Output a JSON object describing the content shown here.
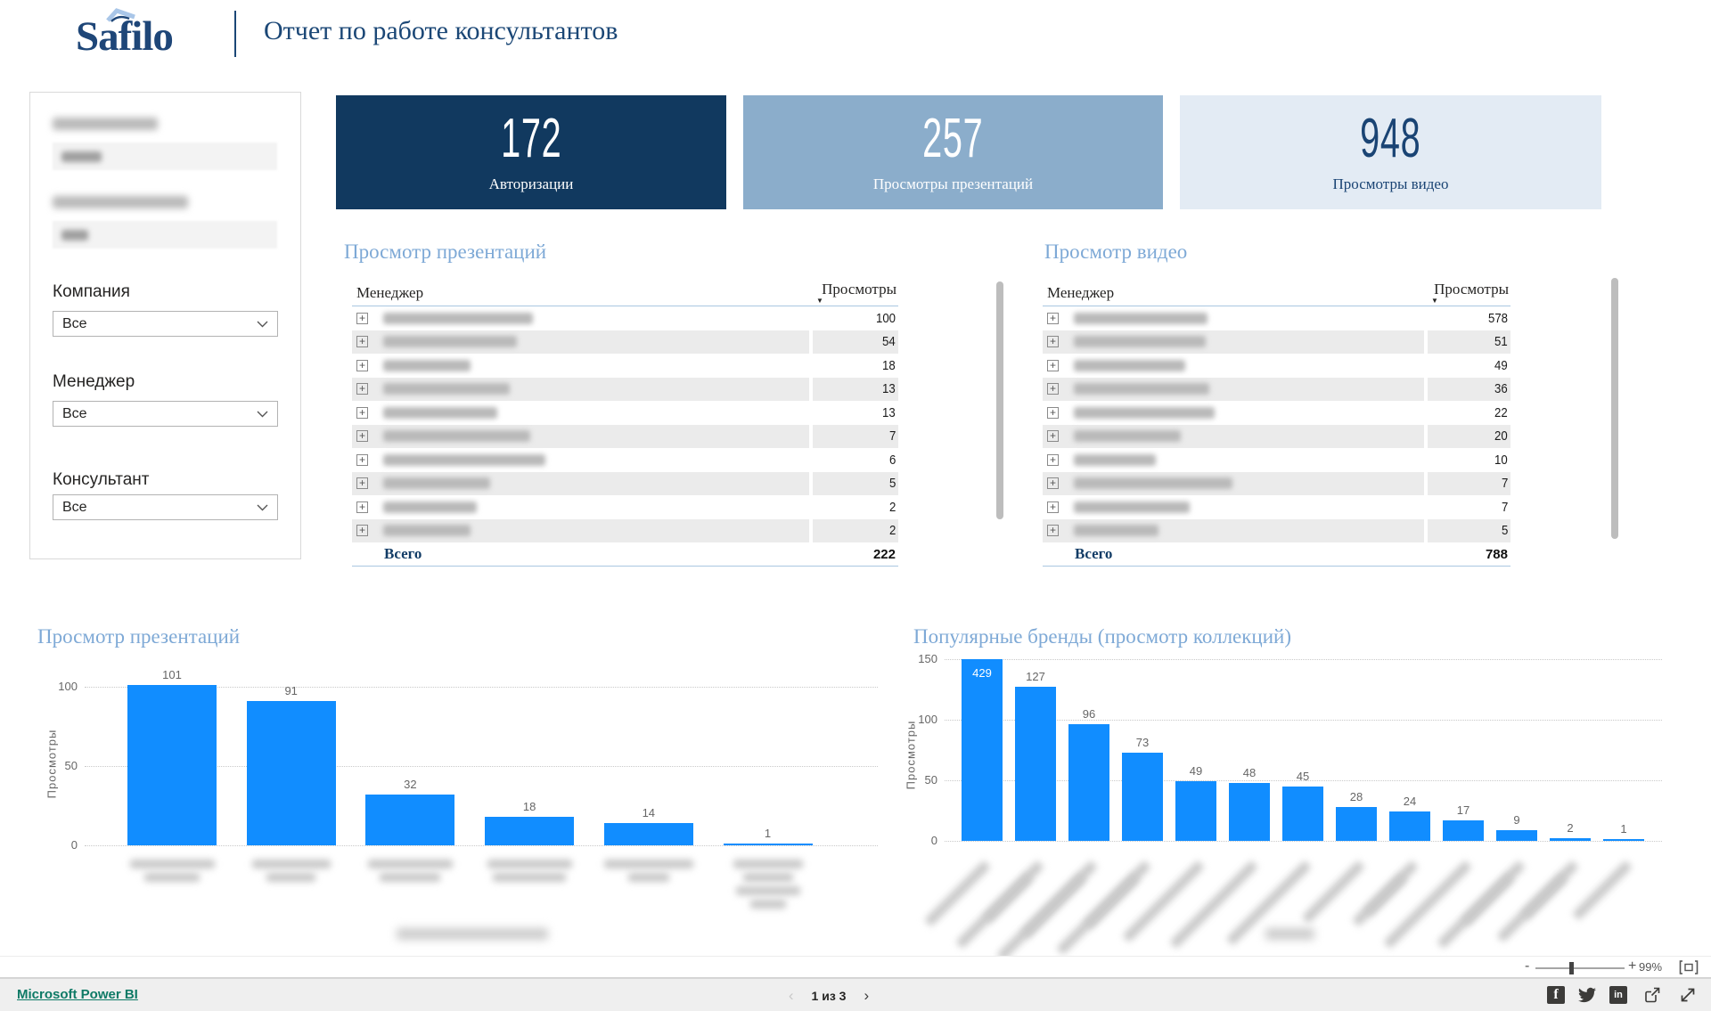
{
  "header": {
    "logo_text": "Safilo",
    "report_title": "Отчет по работе консультантов"
  },
  "sidebar": {
    "filters": [
      {
        "label": "Компания",
        "value": "Все"
      },
      {
        "label": "Менеджер",
        "value": "Все"
      },
      {
        "label": "Консультант",
        "value": "Все"
      }
    ],
    "redacted_filters_count": 2
  },
  "kpis": [
    {
      "value": "172",
      "label": "Авторизации"
    },
    {
      "value": "257",
      "label": "Просмотры презентаций"
    },
    {
      "value": "948",
      "label": "Просмотры видео"
    }
  ],
  "tables": [
    {
      "title": "Просмотр презентаций",
      "columns": [
        "Менеджер",
        "Просмотры"
      ],
      "rows_redacted": true,
      "values": [
        100,
        54,
        18,
        13,
        13,
        7,
        6,
        5,
        2,
        2
      ],
      "total_label": "Всего",
      "total": "222"
    },
    {
      "title": "Просмотр видео",
      "columns": [
        "Менеджер",
        "Просмотры"
      ],
      "rows_redacted": true,
      "values": [
        578,
        51,
        49,
        36,
        22,
        20,
        10,
        7,
        7,
        5
      ],
      "total_label": "Всего",
      "total": "788"
    }
  ],
  "chart_data": [
    {
      "type": "bar",
      "title": "Просмотр презентаций",
      "ylabel": "Просмотры",
      "values": [
        101,
        91,
        32,
        18,
        14,
        1
      ],
      "categories": [
        "redacted",
        "redacted",
        "redacted",
        "redacted",
        "redacted",
        "redacted"
      ],
      "yticks": [
        0,
        50,
        100
      ],
      "ylim": [
        0,
        112
      ],
      "grid": "dotted-horizontal",
      "legend": "none",
      "bar_color": "#118DFF"
    },
    {
      "type": "bar",
      "title": "Популярные бренды (просмотр коллекций)",
      "ylabel": "Просмотры",
      "values": [
        429,
        127,
        96,
        73,
        49,
        48,
        45,
        28,
        24,
        17,
        9,
        2,
        1
      ],
      "categories": [
        "redacted",
        "redacted",
        "redacted",
        "redacted",
        "redacted",
        "redacted",
        "redacted",
        "redacted",
        "redacted",
        "redacted",
        "redacted",
        "redacted",
        "redacted"
      ],
      "yticks": [
        0,
        50,
        100,
        150
      ],
      "ylim": [
        0,
        150
      ],
      "clipped_first_bar": true,
      "grid": "dotted-horizontal",
      "legend": "none",
      "bar_color": "#118DFF"
    }
  ],
  "zoom_bar": {
    "minus": "-",
    "plus": "+",
    "percent": "99%"
  },
  "footer": {
    "brand_link": "Microsoft Power BI",
    "page_indicator": "1 из 3",
    "icons": [
      "facebook-icon",
      "twitter-icon",
      "linkedin-icon",
      "share-icon",
      "fullscreen-icon"
    ]
  },
  "colors": {
    "navy": "#11395f",
    "card_mid": "#8badcb",
    "card_light": "#e3ebf4",
    "title_blue": "#7ea9d6",
    "bar_blue": "#118DFF",
    "link_teal": "#0e7a66",
    "stripe": "#ebebeb",
    "table_rule": "#a9c7e1"
  }
}
